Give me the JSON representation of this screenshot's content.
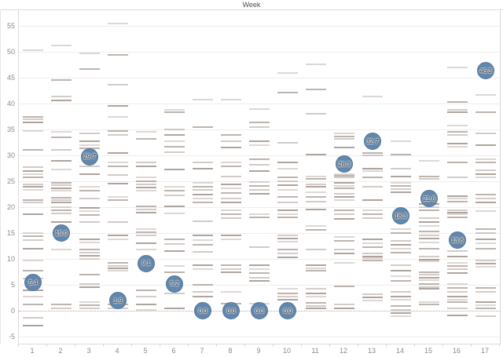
{
  "title": "Week",
  "colors": {
    "circle_fill": "#6287ac",
    "circle_border": "#54779b",
    "circle_label": "#333333",
    "mark_rgb": "130,112,102",
    "gridline": "#efeeed",
    "zero_line": "#b3a9a1",
    "axis_border": "#d9d9d9",
    "axis_text": "#8a8a8a",
    "title_text": "#4e4e4e"
  },
  "chart_data": {
    "type": "scatter",
    "title": "Week",
    "xlabel": "Week",
    "ylabel": "",
    "x_ticks": [
      "1",
      "2",
      "3",
      "4",
      "5",
      "6",
      "7",
      "8",
      "9",
      "10",
      "11",
      "12",
      "13",
      "14",
      "15",
      "16",
      "17"
    ],
    "y_ticks": [
      -5,
      0,
      5,
      10,
      15,
      20,
      25,
      30,
      35,
      40,
      45,
      50,
      55
    ],
    "ylim": [
      -6.4,
      58.2
    ],
    "xlim": [
      0.5,
      17.5
    ],
    "grid": "horizontal",
    "legend": "none",
    "labeled_points": [
      {
        "x": 1,
        "y": 5.4,
        "label": "5.4"
      },
      {
        "x": 2,
        "y": 15.0,
        "label": "15.0"
      },
      {
        "x": 3,
        "y": 29.7,
        "label": "29.7"
      },
      {
        "x": 4,
        "y": 1.9,
        "label": "1.9"
      },
      {
        "x": 5,
        "y": 9.1,
        "label": "9.1"
      },
      {
        "x": 6,
        "y": 5.2,
        "label": "5.2"
      },
      {
        "x": 7,
        "y": 0.0,
        "label": "0.0"
      },
      {
        "x": 8,
        "y": 0.0,
        "label": "0.0"
      },
      {
        "x": 9,
        "y": 0.0,
        "label": "0.0"
      },
      {
        "x": 10,
        "y": 0.0,
        "label": "0.0"
      },
      {
        "x": 12,
        "y": 28.3,
        "label": "28.3"
      },
      {
        "x": 13,
        "y": 32.7,
        "label": "32.7"
      },
      {
        "x": 14,
        "y": 18.3,
        "label": "18.3"
      },
      {
        "x": 15,
        "y": 21.6,
        "label": "21.6"
      },
      {
        "x": 16,
        "y": 13.6,
        "label": "13.6"
      },
      {
        "x": 17,
        "y": 46.3,
        "label": "46.3"
      }
    ],
    "background_marks": {
      "1": [
        50.3,
        37.5,
        37.0,
        36.4,
        34.7,
        31.0,
        27.7,
        27.0,
        26.3,
        25.7,
        24.4,
        23.9,
        23.3,
        21.4,
        20.9,
        18.6,
        15.0,
        14.4,
        13.7,
        11.9,
        9.7,
        7.8,
        6.2,
        3.9,
        2.7,
        1.2,
        -1.4,
        -2.9
      ],
      "2": [
        51.2,
        44.6,
        41.3,
        40.6,
        34.5,
        33.5,
        31.0,
        28.9,
        27.2,
        24.7,
        24.2,
        23.7,
        23.2,
        21.8,
        21.3,
        20.9,
        20.0,
        19.4,
        18.8,
        17.1,
        11.8,
        1.2,
        0.5
      ],
      "3": [
        49.7,
        46.6,
        34.2,
        32.7,
        32.0,
        31.4,
        27.9,
        26.4,
        23.9,
        23.2,
        21.6,
        19.8,
        19.2,
        18.5,
        17.1,
        13.8,
        13.2,
        11.8,
        11.2,
        10.6,
        10.0,
        7.0,
        5.2,
        4.6,
        1.7,
        1.0,
        0.4
      ],
      "4": [
        55.5,
        49.4,
        43.6,
        39.5,
        37.5,
        34.7,
        34.0,
        30.5,
        28.7,
        27.9,
        26.2,
        24.6,
        21.9,
        21.3,
        17.1,
        14.5,
        13.8,
        9.2,
        8.7,
        8.2,
        7.7,
        1.2,
        0.5
      ],
      "5": [
        34.5,
        33.2,
        28.6,
        27.9,
        25.7,
        25.0,
        24.4,
        23.8,
        23.2,
        20.1,
        19.5,
        18.9,
        15.8,
        15.2,
        14.5,
        13.0,
        11.8,
        3.9,
        2.7,
        1.2,
        0.2
      ],
      "6": [
        38.8,
        38.3,
        35.0,
        33.9,
        32.7,
        31.7,
        30.6,
        27.2,
        23.9,
        23.2,
        22.3,
        20.1,
        18.8,
        13.8,
        12.9,
        11.5,
        8.7,
        7.5,
        3.4,
        0.4
      ],
      "7": [
        40.8,
        35.5,
        28.7,
        27.4,
        24.7,
        24.0,
        23.3,
        22.5,
        21.7,
        20.9,
        17.3,
        14.5,
        13.6,
        12.7,
        11.3,
        8.8,
        8.0,
        5.0,
        3.6,
        2.7
      ],
      "8": [
        40.8,
        34.0,
        32.7,
        31.5,
        28.6,
        27.9,
        25.9,
        24.4,
        23.6,
        22.8,
        21.7,
        20.9,
        19.4,
        18.6,
        17.9,
        14.5,
        13.8,
        8.8,
        8.1,
        7.5,
        3.7,
        1.4
      ],
      "9": [
        39.0,
        36.3,
        35.5,
        32.7,
        32.0,
        29.2,
        28.2,
        26.9,
        24.9,
        24.1,
        23.4,
        22.6,
        18.6,
        18.0,
        12.3,
        8.8,
        8.0,
        7.2,
        6.4,
        5.7,
        1.4
      ],
      "10": [
        45.9,
        42.1,
        32.5,
        28.6,
        27.4,
        25.7,
        25.0,
        24.2,
        23.4,
        21.9,
        20.9,
        19.4,
        18.7,
        18.0,
        14.5,
        13.9,
        13.3,
        11.8,
        11.0,
        10.3,
        4.2,
        3.4,
        2.7,
        2.1
      ],
      "11": [
        47.6,
        42.8,
        38.0,
        30.2,
        25.9,
        25.5,
        24.4,
        23.9,
        22.9,
        22.0,
        21.1,
        19.6,
        16.4,
        15.6,
        11.8,
        8.8,
        8.2,
        7.7,
        4.2,
        3.4,
        2.7,
        1.5,
        0.9,
        0.4
      ],
      "12": [
        34.2,
        33.7,
        33.2,
        31.5,
        26.4,
        26.0,
        25.7,
        24.7,
        24.1,
        23.6,
        22.6,
        22.0,
        21.4,
        19.4,
        18.6,
        17.8,
        14.2,
        13.5,
        11.8,
        11.0,
        9.2,
        4.7,
        1.2,
        0.5
      ],
      "13": [
        41.3,
        30.5,
        30.0,
        27.4,
        26.9,
        25.7,
        23.9,
        21.4,
        19.4,
        18.6,
        17.9,
        13.8,
        13.0,
        12.3,
        11.0,
        10.5,
        10.1,
        9.7,
        3.2,
        2.6,
        2.0
      ],
      "14": [
        32.7,
        30.2,
        27.4,
        25.9,
        24.7,
        24.1,
        23.5,
        22.9,
        15.8,
        15.0,
        13.5,
        12.7,
        12.0,
        11.2,
        8.8,
        7.7,
        6.6,
        5.7,
        3.6,
        2.8,
        2.1,
        0.9,
        0.2,
        -0.5,
        -1.1
      ],
      "15": [
        28.9,
        25.9,
        25.5,
        20.6,
        20.0,
        19.4,
        17.9,
        17.1,
        16.4,
        15.3,
        14.6,
        13.9,
        13.2,
        12.0,
        10.5,
        9.9,
        9.5,
        7.4,
        6.9,
        6.4,
        5.9,
        5.2,
        4.6,
        4.2,
        1.7,
        1.2
      ],
      "16": [
        46.9,
        40.3,
        38.8,
        38.3,
        35.8,
        34.5,
        33.9,
        32.3,
        31.7,
        28.7,
        25.7,
        22.1,
        21.6,
        21.1,
        19.4,
        19.0,
        18.6,
        18.1,
        11.5,
        10.5,
        9.2,
        8.6,
        8.0,
        7.3,
        5.2,
        4.4,
        3.6,
        2.8,
        2.1,
        1.7,
        0.4,
        -0.9
      ],
      "17": [
        41.6,
        38.3,
        34.2,
        32.0,
        29.2,
        28.6,
        27.1,
        26.4,
        25.7,
        22.4,
        21.6,
        20.9,
        19.3,
        15.8,
        15.0,
        13.8,
        13.0,
        12.0,
        9.7,
        9.1,
        8.5,
        4.4,
        3.6,
        1.7,
        1.1,
        0.5,
        -1.1
      ]
    }
  }
}
